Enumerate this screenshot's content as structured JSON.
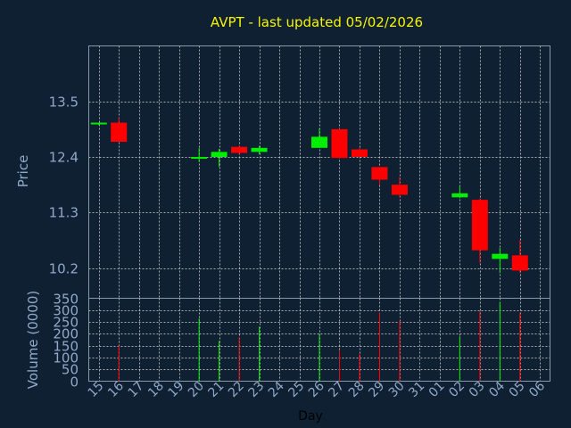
{
  "chart_data": {
    "type": "candlestick",
    "title": "AVPT - last updated 05/02/2026",
    "ylabel": "Price",
    "volume_label": "Volume (0000)",
    "xlabel": "Day",
    "up_color": "#00ee00",
    "down_color": "#ff0000",
    "background": "#102033",
    "price_ylim": [
      9.6,
      14.6
    ],
    "price_ticks": [
      "13.5",
      "12.4",
      "11.3",
      "10.2"
    ],
    "volume_ylim": [
      0,
      350
    ],
    "volume_ticks": [
      "350",
      "300",
      "250",
      "200",
      "150",
      "100",
      "50",
      "0"
    ],
    "x_ticks": [
      "15",
      "16",
      "17",
      "18",
      "19",
      "20",
      "21",
      "22",
      "23",
      "24",
      "25",
      "26",
      "27",
      "28",
      "29",
      "30",
      "31",
      "01",
      "02",
      "03",
      "04",
      "05",
      "06"
    ],
    "candles": [
      {
        "day": "15",
        "open": 13.05,
        "high": 13.08,
        "low": 13.03,
        "close": 13.08,
        "volume": 0
      },
      {
        "day": "16",
        "open": 13.08,
        "high": 13.18,
        "low": 12.7,
        "close": 12.7,
        "volume": 150
      },
      {
        "day": "20",
        "open": 12.38,
        "high": 12.58,
        "low": 12.3,
        "close": 12.4,
        "volume": 265
      },
      {
        "day": "21",
        "open": 12.4,
        "high": 12.56,
        "low": 12.2,
        "close": 12.5,
        "volume": 170
      },
      {
        "day": "22",
        "open": 12.6,
        "high": 12.62,
        "low": 12.45,
        "close": 12.48,
        "volume": 185
      },
      {
        "day": "23",
        "open": 12.5,
        "high": 12.62,
        "low": 12.45,
        "close": 12.58,
        "volume": 230
      },
      {
        "day": "26",
        "open": 12.58,
        "high": 12.97,
        "low": 12.58,
        "close": 12.8,
        "volume": 200
      },
      {
        "day": "27",
        "open": 12.95,
        "high": 12.96,
        "low": 12.38,
        "close": 12.38,
        "volume": 130
      },
      {
        "day": "28",
        "open": 12.55,
        "high": 12.58,
        "low": 12.4,
        "close": 12.4,
        "volume": 115
      },
      {
        "day": "29",
        "open": 12.2,
        "high": 12.2,
        "low": 11.85,
        "close": 11.95,
        "volume": 290
      },
      {
        "day": "30",
        "open": 11.85,
        "high": 12.0,
        "low": 11.6,
        "close": 11.65,
        "volume": 255
      },
      {
        "day": "02",
        "open": 11.6,
        "high": 11.82,
        "low": 11.58,
        "close": 11.68,
        "volume": 190
      },
      {
        "day": "03",
        "open": 11.55,
        "high": 11.58,
        "low": 10.3,
        "close": 10.55,
        "volume": 295
      },
      {
        "day": "04",
        "open": 10.38,
        "high": 10.6,
        "low": 10.1,
        "close": 10.48,
        "volume": 335
      },
      {
        "day": "05",
        "open": 10.45,
        "high": 10.75,
        "low": 10.1,
        "close": 10.15,
        "volume": 290
      }
    ]
  }
}
